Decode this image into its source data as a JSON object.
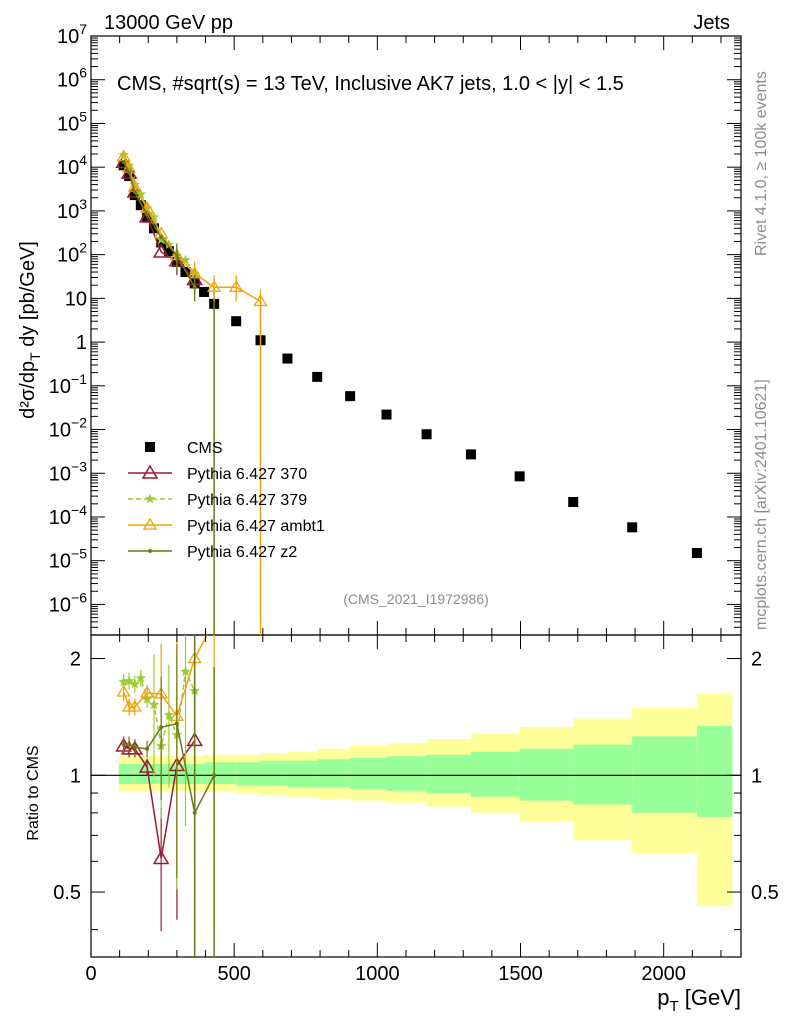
{
  "header": {
    "left": "13000 GeV pp",
    "right": "Jets",
    "plot_title": "CMS, #sqrt(s) = 13 TeV, Inclusive AK7 jets, 1.0 < |y| < 1.5",
    "side_rivet": "Rivet 4.1.0, ≥ 100k events",
    "side_mcplots": "mcplots.cern.ch [arXiv:2401.10621]",
    "analysis_id": "(CMS_2021_I1972986)"
  },
  "colors": {
    "cms": "#000000",
    "p370": "#9b1b30",
    "p379": "#9acd32",
    "ambt1": "#f0a30a",
    "z2": "#6b7a1a",
    "band_inner": "#99ff99",
    "band_outer": "#ffff99"
  },
  "chart_data": [
    {
      "type": "scatter",
      "panel": "main",
      "ylabel": "d²σ/dp_T dy [pb/GeV]",
      "yscale": "log",
      "xlim": [
        0,
        2270
      ],
      "ylim": [
        2e-07,
        10000000.0
      ],
      "y_ticks": [
        {
          "value": 10000000.0,
          "base": "10",
          "exp": "7"
        },
        {
          "value": 1000000.0,
          "base": "10",
          "exp": "6"
        },
        {
          "value": 100000.0,
          "base": "10",
          "exp": "5"
        },
        {
          "value": 10000.0,
          "base": "10",
          "exp": "4"
        },
        {
          "value": 1000.0,
          "base": "10",
          "exp": "3"
        },
        {
          "value": 100.0,
          "base": "10",
          "exp": "2"
        },
        {
          "value": 10,
          "base": "10",
          "exp": ""
        },
        {
          "value": 1,
          "base": "1",
          "exp": ""
        },
        {
          "value": 0.1,
          "base": "10",
          "exp": "−1"
        },
        {
          "value": 0.01,
          "base": "10",
          "exp": "−2"
        },
        {
          "value": 0.001,
          "base": "10",
          "exp": "−3"
        },
        {
          "value": 0.0001,
          "base": "10",
          "exp": "−4"
        },
        {
          "value": 1e-05,
          "base": "10",
          "exp": "−5"
        },
        {
          "value": 1e-06,
          "base": "10",
          "exp": "−6"
        }
      ],
      "legend": [
        {
          "key": "cms",
          "label": "CMS"
        },
        {
          "key": "p370",
          "label": "Pythia 6.427 370"
        },
        {
          "key": "p379",
          "label": "Pythia 6.427 379"
        },
        {
          "key": "ambt1",
          "label": "Pythia 6.427 ambt1"
        },
        {
          "key": "z2",
          "label": "Pythia 6.427 z2"
        }
      ],
      "series": [
        {
          "key": "cms",
          "name": "CMS",
          "x": [
            114,
            133,
            153,
            174,
            196,
            220,
            245,
            272,
            300,
            330,
            362,
            395,
            430,
            507,
            592,
            686,
            790,
            905,
            1032,
            1172,
            1327,
            1497,
            1684,
            1890,
            2116
          ],
          "y": [
            11000,
            6300,
            2300,
            1350,
            700,
            400,
            190,
            120,
            68,
            40,
            22,
            14,
            7.5,
            3.0,
            1.1,
            0.42,
            0.16,
            0.058,
            0.022,
            0.0078,
            0.0027,
            0.00085,
            0.00022,
            5.8e-05,
            1.5e-05
          ]
        },
        {
          "key": "p370",
          "name": "Pythia 6.427 370",
          "x": [
            114,
            133,
            153,
            196,
            245,
            300,
            362
          ],
          "y": [
            13000,
            7300,
            2700,
            730,
            115,
            72,
            27
          ]
        },
        {
          "key": "p379",
          "name": "Pythia 6.427 379",
          "x": [
            114,
            133,
            153,
            174,
            196,
            220,
            245,
            272,
            300,
            330,
            362
          ],
          "y": [
            19000,
            11000,
            4000,
            2400,
            1150,
            720,
            220,
            170,
            95,
            75,
            36
          ]
        },
        {
          "key": "ambt1",
          "name": "Pythia 6.427 ambt1",
          "x": [
            114,
            133,
            153,
            196,
            245,
            300,
            362,
            430,
            507,
            592
          ],
          "y": [
            17500,
            9500,
            3500,
            1150,
            300,
            95,
            37,
            18,
            18,
            8.5
          ],
          "down_to_floor": [
            592
          ]
        },
        {
          "key": "z2",
          "name": "Pythia 6.427 z2",
          "x": [
            114,
            133,
            153,
            196,
            245,
            300,
            362
          ],
          "y": [
            13200,
            7600,
            2700,
            830,
            250,
            95,
            18
          ],
          "down_to_floor": [
            430
          ]
        }
      ]
    },
    {
      "type": "line",
      "panel": "ratio",
      "ylabel": "Ratio to CMS",
      "xlabel": "p_T [GeV]",
      "xlim": [
        0,
        2270
      ],
      "ylim": [
        0.34,
        2.3
      ],
      "yscale": "log",
      "x_ticks": [
        0,
        500,
        1000,
        1500,
        2000
      ],
      "y_ticks": [
        0.5,
        1,
        2
      ],
      "band_edges": [
        97,
        153,
        220,
        300,
        395,
        507,
        592,
        686,
        790,
        905,
        1032,
        1172,
        1327,
        1497,
        1684,
        1890,
        2116,
        2240
      ],
      "band_inner_hi": [
        1.07,
        1.07,
        1.07,
        1.07,
        1.08,
        1.08,
        1.09,
        1.09,
        1.1,
        1.11,
        1.12,
        1.13,
        1.15,
        1.17,
        1.2,
        1.26,
        1.34
      ],
      "band_inner_lo": [
        0.95,
        0.95,
        0.95,
        0.95,
        0.95,
        0.94,
        0.94,
        0.93,
        0.93,
        0.92,
        0.91,
        0.9,
        0.88,
        0.86,
        0.84,
        0.8,
        0.78
      ],
      "band_outer_hi": [
        1.12,
        1.12,
        1.12,
        1.12,
        1.13,
        1.13,
        1.14,
        1.15,
        1.17,
        1.19,
        1.21,
        1.24,
        1.28,
        1.33,
        1.4,
        1.49,
        1.62
      ],
      "band_outer_lo": [
        0.91,
        0.91,
        0.91,
        0.91,
        0.91,
        0.9,
        0.89,
        0.88,
        0.87,
        0.86,
        0.85,
        0.83,
        0.8,
        0.76,
        0.68,
        0.63,
        0.46
      ],
      "series": [
        {
          "key": "p370",
          "x": [
            114,
            133,
            153,
            196,
            245,
            300,
            362
          ],
          "y": [
            1.19,
            1.17,
            1.17,
            1.05,
            0.61,
            1.06,
            1.23
          ]
        },
        {
          "key": "p379",
          "x": [
            114,
            133,
            153,
            174,
            196,
            220,
            245,
            272,
            300,
            330,
            362
          ],
          "y": [
            1.74,
            1.75,
            1.72,
            1.78,
            1.57,
            1.52,
            1.19,
            1.43,
            1.27,
            1.85,
            1.65
          ]
        },
        {
          "key": "ambt1",
          "x": [
            114,
            133,
            153,
            196,
            245,
            300,
            362,
            430
          ],
          "y": [
            1.64,
            1.5,
            1.5,
            1.63,
            1.62,
            1.42,
            2.0,
            2.5
          ]
        },
        {
          "key": "z2",
          "x": [
            114,
            133,
            153,
            196,
            245,
            300,
            362,
            430
          ],
          "y": [
            1.2,
            1.2,
            1.18,
            1.17,
            1.33,
            1.36,
            0.8,
            1.0
          ]
        }
      ]
    }
  ]
}
